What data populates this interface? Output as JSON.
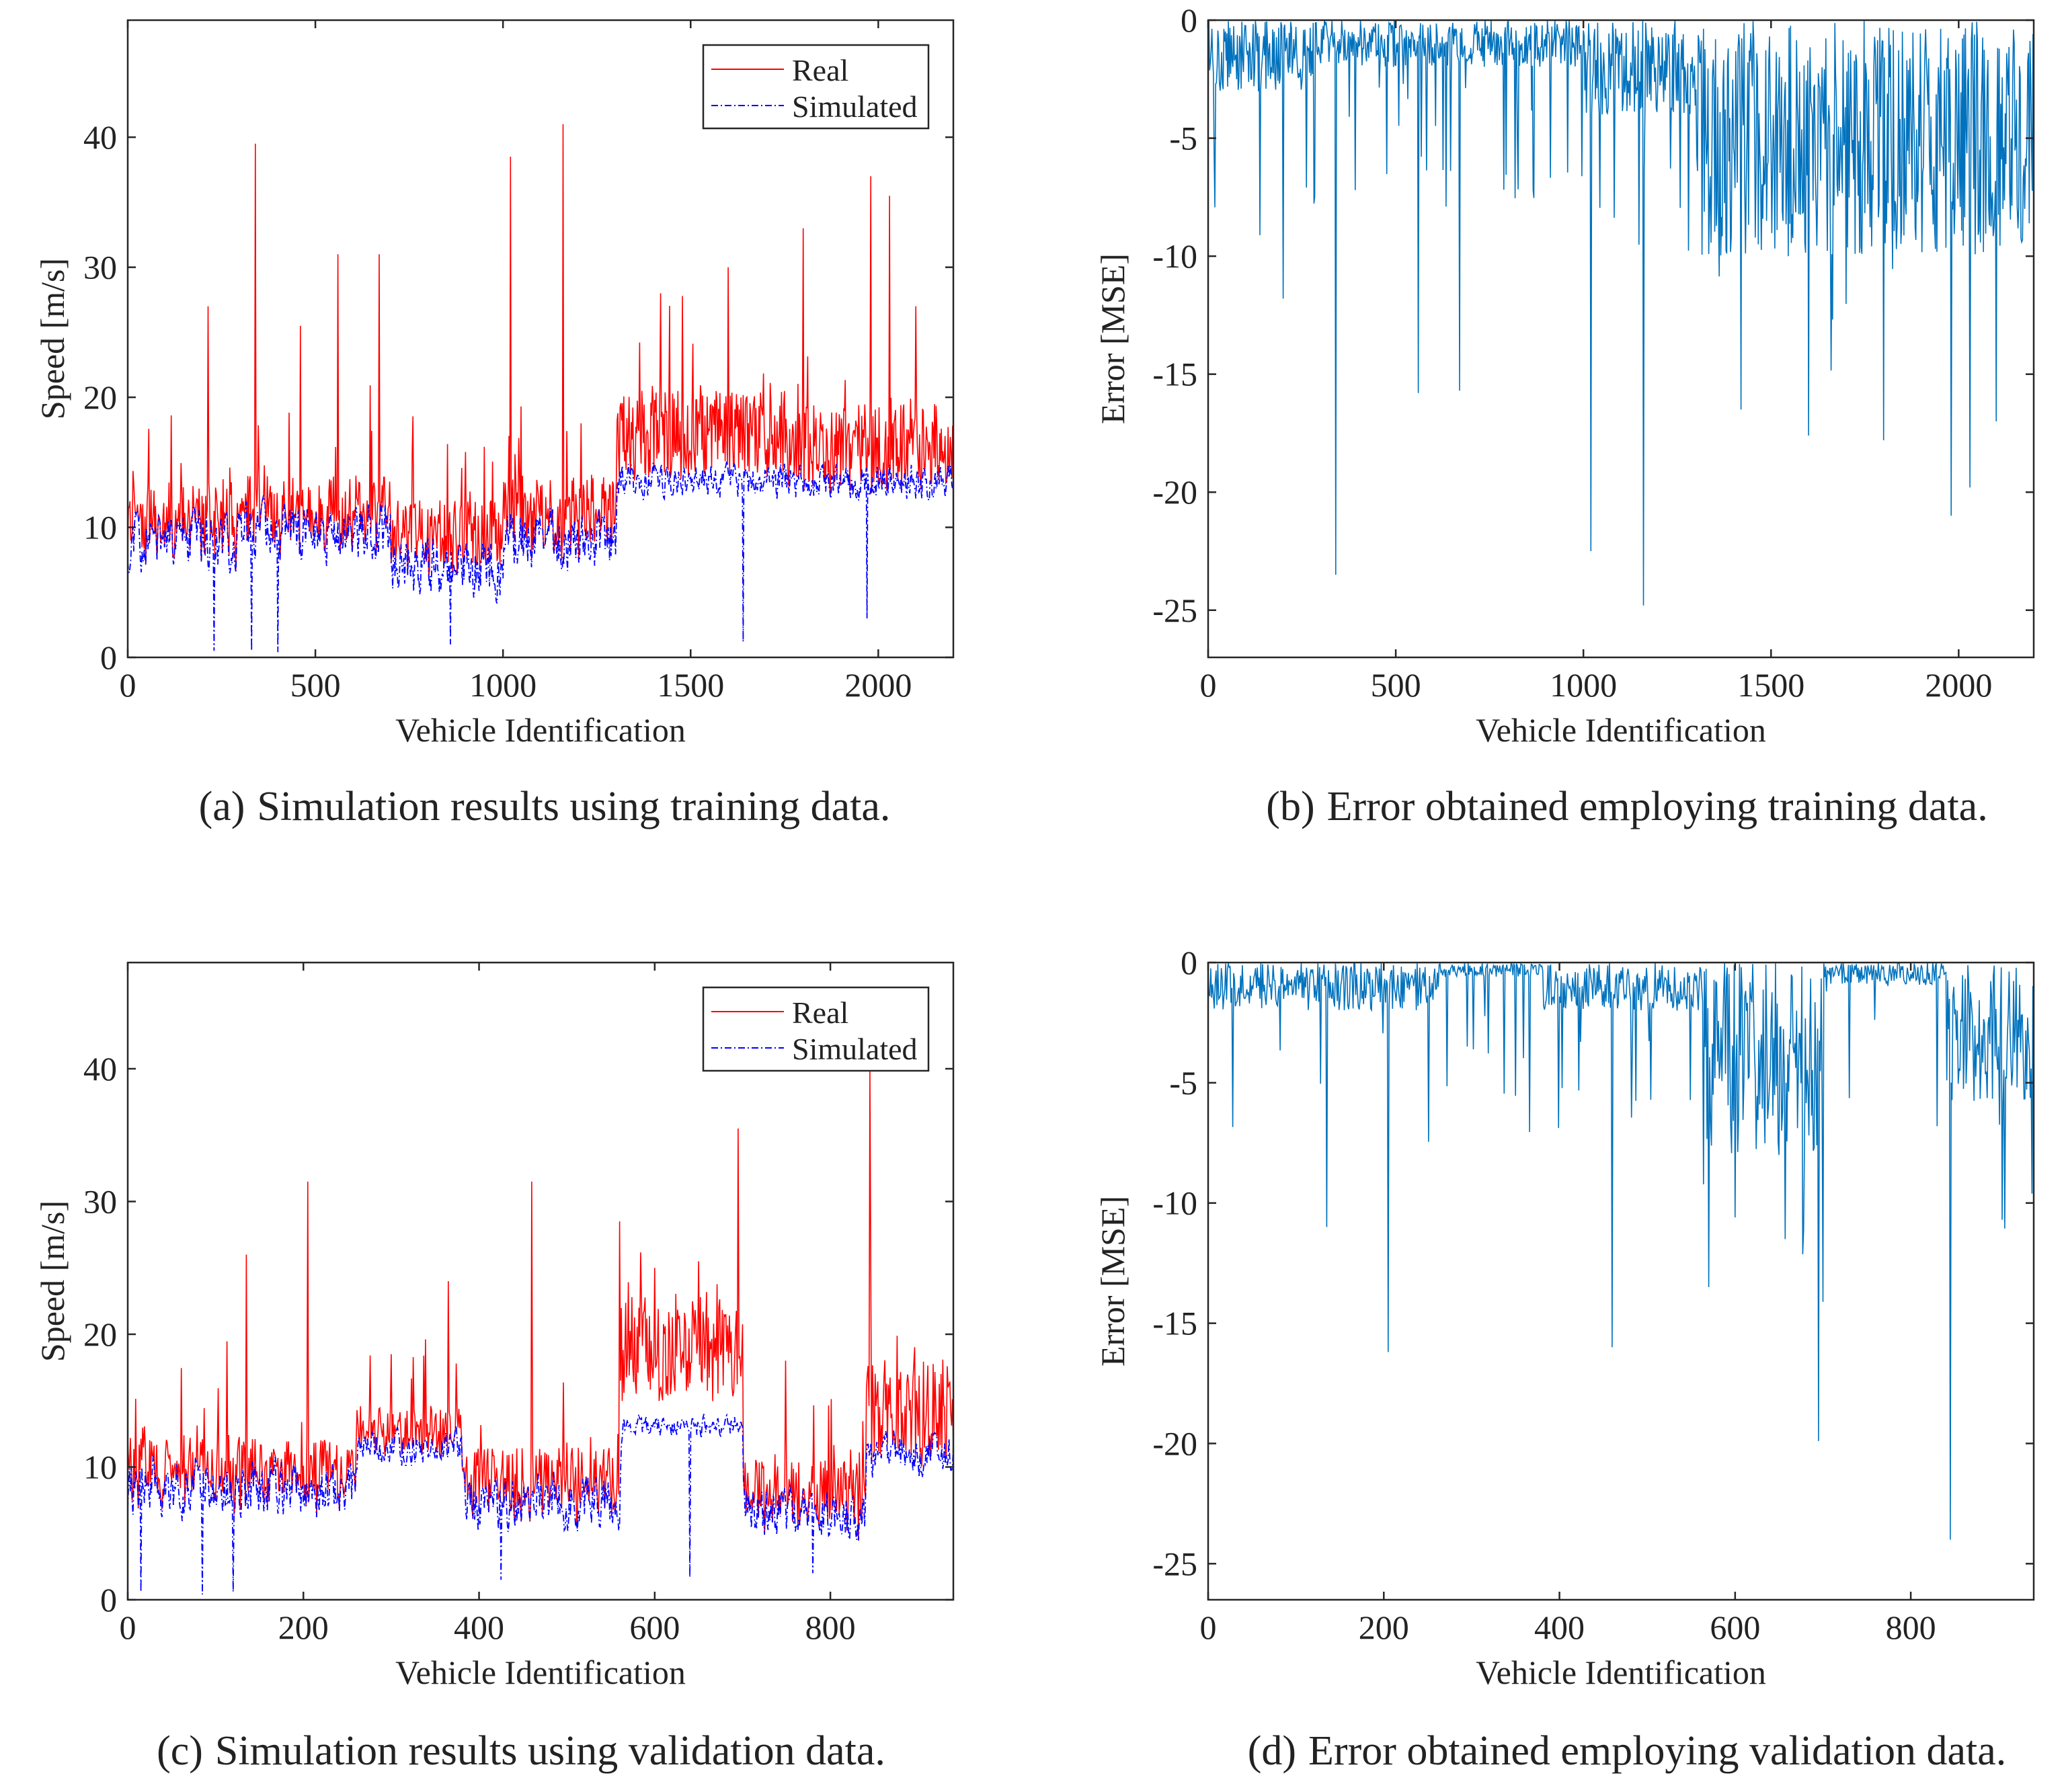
{
  "figure": {
    "captions": [
      {
        "label": "(a)",
        "text": "Simulation results using training data."
      },
      {
        "label": "(b)",
        "text": "Error obtained employing training data."
      },
      {
        "label": "(c)",
        "text": "Simulation results using validation data."
      },
      {
        "label": "(d)",
        "text": "Error obtained employing validation data."
      }
    ]
  },
  "chart_data": [
    {
      "id": "a",
      "type": "line",
      "xlabel": "Vehicle Identification",
      "ylabel": "Speed [m/s]",
      "xlim": [
        0,
        2200
      ],
      "ylim": [
        0,
        49
      ],
      "xticks": [
        0,
        500,
        1000,
        1500,
        2000
      ],
      "yticks": [
        0,
        10,
        20,
        30,
        40
      ],
      "legend": {
        "placement": "top-right",
        "entries": [
          "Real",
          "Simulated"
        ]
      },
      "colors": {
        "real": "#ff0000",
        "simulated": "#0000ff"
      },
      "series": [
        {
          "name": "Real",
          "style": "solid",
          "segments": [
            [
              0,
              300,
              10,
              2.5
            ],
            [
              300,
              700,
              10.5,
              2.5
            ],
            [
              700,
              1000,
              9,
              2.2
            ],
            [
              1000,
              1300,
              10.5,
              2.5
            ],
            [
              1300,
              1750,
              17,
              2.5
            ],
            [
              1750,
              2200,
              16,
              2.5
            ]
          ],
          "peaks": [
            [
              215,
              27
            ],
            [
              340,
              39.5
            ],
            [
              460,
              25.5
            ],
            [
              560,
              31
            ],
            [
              670,
              31
            ],
            [
              1020,
              38.5
            ],
            [
              1160,
              41
            ],
            [
              1420,
              28
            ],
            [
              1600,
              30
            ],
            [
              1800,
              33
            ],
            [
              1980,
              37
            ],
            [
              2030,
              35.5
            ],
            [
              2100,
              27
            ]
          ]
        },
        {
          "name": "Simulated",
          "style": "dashdot",
          "segments": [
            [
              0,
              300,
              9,
              2.5
            ],
            [
              300,
              700,
              9.5,
              2.5
            ],
            [
              700,
              1000,
              7,
              2.5
            ],
            [
              1000,
              1300,
              9,
              2.5
            ],
            [
              1300,
              1750,
              13.5,
              1.5
            ],
            [
              1750,
              2200,
              13.5,
              1.5
            ]
          ],
          "dips": [
            [
              230,
              0.5
            ],
            [
              330,
              0.5
            ],
            [
              400,
              0.4
            ],
            [
              860,
              1
            ],
            [
              1640,
              1.2
            ],
            [
              1970,
              3
            ]
          ]
        }
      ]
    },
    {
      "id": "b",
      "type": "line",
      "xlabel": "Vehicle Identification",
      "ylabel": "Error [MSE]",
      "xlim": [
        0,
        2200
      ],
      "ylim": [
        -27,
        0
      ],
      "xticks": [
        0,
        500,
        1000,
        1500,
        2000
      ],
      "yticks": [
        0,
        -5,
        -10,
        -15,
        -20,
        -25
      ],
      "colors": {
        "line": "#0072bd"
      },
      "series": [
        {
          "name": "",
          "segments": [
            [
              0,
              300,
              -1.5
            ],
            [
              300,
              1000,
              -1
            ],
            [
              1000,
              1300,
              -2
            ],
            [
              1300,
              1750,
              -5
            ],
            [
              1750,
              2200,
              -5
            ]
          ],
          "spikes": [
            [
              200,
              -11.8
            ],
            [
              340,
              -23.5
            ],
            [
              560,
              -15.8
            ],
            [
              670,
              -15.7
            ],
            [
              1020,
              -22.5
            ],
            [
              1160,
              -24.8
            ],
            [
              1420,
              -16.5
            ],
            [
              1600,
              -17.6
            ],
            [
              1800,
              -17.8
            ],
            [
              1980,
              -21
            ],
            [
              2030,
              -19.8
            ],
            [
              2100,
              -17
            ]
          ]
        }
      ]
    },
    {
      "id": "c",
      "type": "line",
      "xlabel": "Vehicle Identification",
      "ylabel": "Speed [m/s]",
      "xlim": [
        0,
        940
      ],
      "ylim": [
        0,
        48
      ],
      "xticks": [
        0,
        200,
        400,
        600,
        800
      ],
      "yticks": [
        0,
        10,
        20,
        30,
        40
      ],
      "legend": {
        "placement": "top-right",
        "entries": [
          "Real",
          "Simulated"
        ]
      },
      "colors": {
        "real": "#ff0000",
        "simulated": "#0000ff"
      },
      "series": [
        {
          "name": "Real",
          "style": "solid",
          "segments": [
            [
              0,
              260,
              9,
              2.5
            ],
            [
              260,
              380,
              12.5,
              1.5
            ],
            [
              380,
              560,
              8,
              2.5
            ],
            [
              560,
              700,
              19,
              3
            ],
            [
              700,
              840,
              7,
              2.5
            ],
            [
              840,
              940,
              14,
              3
            ]
          ],
          "peaks": [
            [
              135,
              26
            ],
            [
              205,
              31.5
            ],
            [
              300,
              18.5
            ],
            [
              365,
              24
            ],
            [
              460,
              31.5
            ],
            [
              560,
              28.5
            ],
            [
              600,
              25
            ],
            [
              650,
              25.5
            ],
            [
              695,
              35.5
            ],
            [
              845,
              40
            ]
          ]
        },
        {
          "name": "Simulated",
          "style": "dashdot",
          "segments": [
            [
              0,
              260,
              8.5,
              2.5
            ],
            [
              260,
              380,
              11.5,
              1.5
            ],
            [
              380,
              560,
              7.5,
              2.5
            ],
            [
              560,
              700,
              13,
              1
            ],
            [
              700,
              840,
              6.5,
              2.5
            ],
            [
              840,
              940,
              11,
              2
            ]
          ],
          "dips": [
            [
              15,
              0.6
            ],
            [
              85,
              0.4
            ],
            [
              120,
              0.6
            ],
            [
              425,
              1.5
            ],
            [
              640,
              1.7
            ],
            [
              780,
              2
            ]
          ]
        }
      ]
    },
    {
      "id": "d",
      "type": "line",
      "xlabel": "Vehicle Identification",
      "ylabel": "Error [MSE]",
      "xlim": [
        0,
        940
      ],
      "ylim": [
        -26.5,
        0
      ],
      "xticks": [
        0,
        200,
        400,
        600,
        800
      ],
      "yticks": [
        0,
        -5,
        -10,
        -15,
        -20,
        -25
      ],
      "colors": {
        "line": "#0072bd"
      },
      "series": [
        {
          "name": "",
          "segments": [
            [
              0,
              260,
              -1
            ],
            [
              260,
              380,
              -0.3
            ],
            [
              380,
              560,
              -1
            ],
            [
              560,
              700,
              -4
            ],
            [
              700,
              840,
              -0.5
            ],
            [
              840,
              940,
              -3
            ]
          ],
          "spikes": [
            [
              135,
              -11
            ],
            [
              205,
              -16.2
            ],
            [
              460,
              -16
            ],
            [
              570,
              -13.5
            ],
            [
              600,
              -10.6
            ],
            [
              650,
              -8
            ],
            [
              695,
              -19.9
            ],
            [
              845,
              -24
            ]
          ]
        }
      ]
    }
  ]
}
